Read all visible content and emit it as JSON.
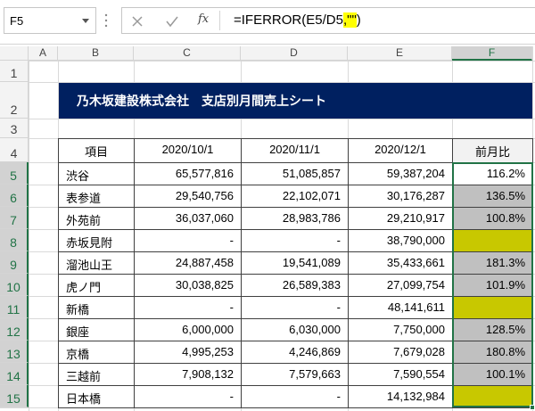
{
  "name_box": "F5",
  "fx_label": "fx",
  "formula": {
    "before": "=IFERROR(E5/D5",
    "highlight": ",\"\"",
    "after": ")"
  },
  "column_headers": [
    "A",
    "B",
    "C",
    "D",
    "E",
    "F"
  ],
  "row_headers": [
    "1",
    "2",
    "3",
    "4",
    "5",
    "6",
    "7",
    "8",
    "9",
    "10",
    "11",
    "12",
    "13",
    "14",
    "15"
  ],
  "title": "乃木坂建設株式会社　支店別月間売上シート",
  "table": {
    "header": [
      "項目",
      "2020/10/1",
      "2020/11/1",
      "2020/12/1",
      "前月比"
    ],
    "rows": [
      {
        "name": "渋谷",
        "values": [
          "65,577,816",
          "51,085,857",
          "59,387,204"
        ],
        "ratio": "116.2%"
      },
      {
        "name": "表参道",
        "values": [
          "29,540,756",
          "22,102,071",
          "30,176,287"
        ],
        "ratio": "136.5%"
      },
      {
        "name": "外苑前",
        "values": [
          "36,037,060",
          "28,983,786",
          "29,210,917"
        ],
        "ratio": "100.8%"
      },
      {
        "name": "赤坂見附",
        "values": [
          "-",
          "-",
          "38,790,000"
        ]
      },
      {
        "name": "溜池山王",
        "values": [
          "24,887,458",
          "19,541,089",
          "35,433,661"
        ],
        "ratio": "181.3%"
      },
      {
        "name": "虎ノ門",
        "values": [
          "30,038,825",
          "26,589,383",
          "27,099,754"
        ],
        "ratio": "101.9%"
      },
      {
        "name": "新橋",
        "values": [
          "-",
          "-",
          "48,141,611"
        ]
      },
      {
        "name": "銀座",
        "values": [
          "6,000,000",
          "6,030,000",
          "7,750,000"
        ],
        "ratio": "128.5%"
      },
      {
        "name": "京橋",
        "values": [
          "4,995,253",
          "4,246,869",
          "7,679,028"
        ],
        "ratio": "180.8%"
      },
      {
        "name": "三越前",
        "values": [
          "7,908,132",
          "7,579,663",
          "7,590,554"
        ],
        "ratio": "100.1%"
      },
      {
        "name": "日本橋",
        "values": [
          "-",
          "-",
          "14,132,984"
        ]
      }
    ]
  }
}
